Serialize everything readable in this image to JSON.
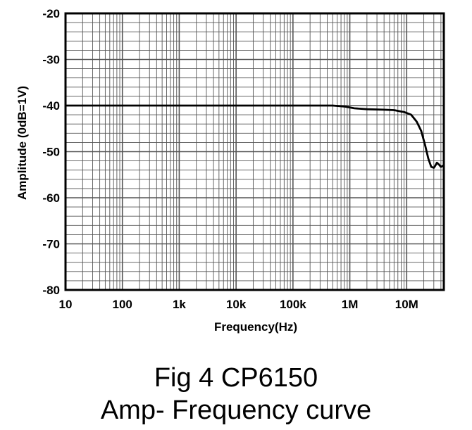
{
  "caption": {
    "line1": "Fig 4 CP6150",
    "line2": "Amp- Frequency curve"
  },
  "chart_data": {
    "type": "line",
    "title": "",
    "xlabel": "Frequency(Hz)",
    "ylabel": "Amplitude (0dB=1V)",
    "xscale": "log",
    "xlim": [
      10,
      45000000
    ],
    "ylim": [
      -80,
      -20
    ],
    "grid": true,
    "x_ticks": [
      {
        "value": 10,
        "label": "10"
      },
      {
        "value": 100,
        "label": "100"
      },
      {
        "value": 1000,
        "label": "1k"
      },
      {
        "value": 10000,
        "label": "10k"
      },
      {
        "value": 100000,
        "label": "100k"
      },
      {
        "value": 1000000,
        "label": "1M"
      },
      {
        "value": 10000000,
        "label": "10M"
      }
    ],
    "y_ticks": [
      {
        "value": -20,
        "label": "-20"
      },
      {
        "value": -30,
        "label": "-30"
      },
      {
        "value": -40,
        "label": "-40"
      },
      {
        "value": -50,
        "label": "-50"
      },
      {
        "value": -60,
        "label": "-60"
      },
      {
        "value": -70,
        "label": "-70"
      },
      {
        "value": -80,
        "label": "-80"
      }
    ],
    "series": [
      {
        "color": "#000000",
        "x": [
          10,
          100,
          1000,
          10000,
          100000,
          500000,
          800000,
          1200000,
          2000000,
          4000000,
          6000000,
          9000000,
          12000000,
          15000000,
          18000000,
          21000000,
          24000000,
          27000000,
          30000000,
          32000000,
          34000000,
          37000000,
          40000000,
          43000000,
          45000000
        ],
        "y": [
          -40,
          -40,
          -40,
          -40,
          -40,
          -40,
          -40.2,
          -40.6,
          -40.8,
          -40.9,
          -41.0,
          -41.4,
          -42.0,
          -43.5,
          -45.5,
          -48.5,
          -51.5,
          -53.3,
          -53.5,
          -53.0,
          -52.4,
          -52.8,
          -53.3,
          -53.1,
          -52.9
        ]
      }
    ]
  }
}
